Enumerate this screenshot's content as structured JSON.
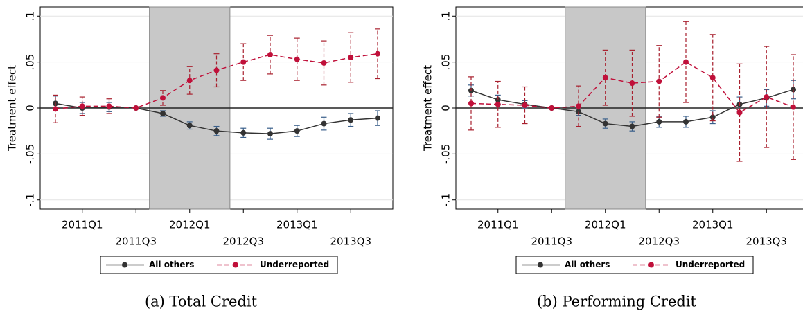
{
  "chart_data": [
    {
      "type": "line",
      "caption": "(a) Total Credit",
      "y_label": "Treatment effect",
      "categories": [
        null,
        "2011Q1",
        null,
        "2011Q3",
        null,
        "2012Q1",
        null,
        "2012Q3",
        null,
        "2013Q1",
        null,
        "2013Q3",
        null
      ],
      "series": [
        {
          "name": "All others",
          "color": "#333333",
          "dash": false,
          "error_color": "#3a5f8a",
          "values": [
            0.005,
            0,
            0.001,
            0,
            -0.006,
            -0.019,
            -0.025,
            -0.027,
            -0.028,
            -0.025,
            -0.017,
            -0.013,
            -0.011
          ],
          "errors": [
            0.008,
            0.006,
            0.005,
            0,
            0.003,
            0.004,
            0.005,
            0.005,
            0.006,
            0.006,
            0.007,
            0.007,
            0.008
          ]
        },
        {
          "name": "Underreported",
          "color": "#c0103a",
          "dash": true,
          "error_color": "#a8202e",
          "values": [
            -0.001,
            0.002,
            0.002,
            0,
            0.011,
            0.03,
            0.041,
            0.05,
            0.058,
            0.053,
            0.049,
            0.055,
            0.059
          ],
          "errors": [
            0.015,
            0.01,
            0.008,
            0,
            0.008,
            0.015,
            0.018,
            0.02,
            0.021,
            0.023,
            0.024,
            0.027,
            0.027
          ]
        }
      ],
      "ylim": [
        -0.11,
        0.11
      ],
      "yticks": [
        {
          "value": -0.1,
          "label": "-.1"
        },
        {
          "value": -0.05,
          "label": "-.05"
        },
        0,
        {
          "value": 0.05,
          "label": ".05"
        },
        {
          "value": 0.1,
          "label": ".1"
        }
      ],
      "grid": true,
      "legend": "bottom"
    },
    {
      "type": "line",
      "caption": "(b) Performing Credit",
      "y_label": "Treatment effect",
      "categories": [
        null,
        "2011Q1",
        null,
        "2011Q3",
        null,
        "2012Q1",
        null,
        "2012Q3",
        null,
        "2013Q1",
        null,
        "2013Q3",
        null
      ],
      "series": [
        {
          "name": "All others",
          "color": "#333333",
          "dash": false,
          "error_color": "#3a5f8a",
          "values": [
            0.019,
            0.009,
            0.004,
            0,
            -0.004,
            -0.017,
            -0.02,
            -0.015,
            -0.015,
            -0.01,
            0.004,
            0.011,
            0.02
          ],
          "errors": [
            0.006,
            0.005,
            0.004,
            0,
            0.004,
            0.005,
            0.005,
            0.006,
            0.006,
            0.007,
            0.008,
            0.009,
            0.01
          ]
        },
        {
          "name": "Underreported",
          "color": "#c0103a",
          "dash": true,
          "error_color": "#a8202e",
          "values": [
            0.005,
            0.004,
            0.003,
            0,
            0.002,
            0.033,
            0.027,
            0.029,
            0.05,
            0.033,
            -0.005,
            0.012,
            0.001
          ],
          "errors": [
            0.029,
            0.025,
            0.02,
            0,
            0.022,
            0.03,
            0.036,
            0.039,
            0.044,
            0.047,
            0.053,
            0.055,
            0.057
          ]
        }
      ],
      "ylim": [
        -0.11,
        0.11
      ],
      "yticks": [
        {
          "value": -0.1,
          "label": "-.1"
        },
        {
          "value": -0.05,
          "label": "-.05"
        },
        0,
        {
          "value": 0.05,
          "label": ".05"
        },
        {
          "value": 0.1,
          "label": ".1"
        }
      ],
      "grid": true,
      "legend": "bottom"
    }
  ]
}
